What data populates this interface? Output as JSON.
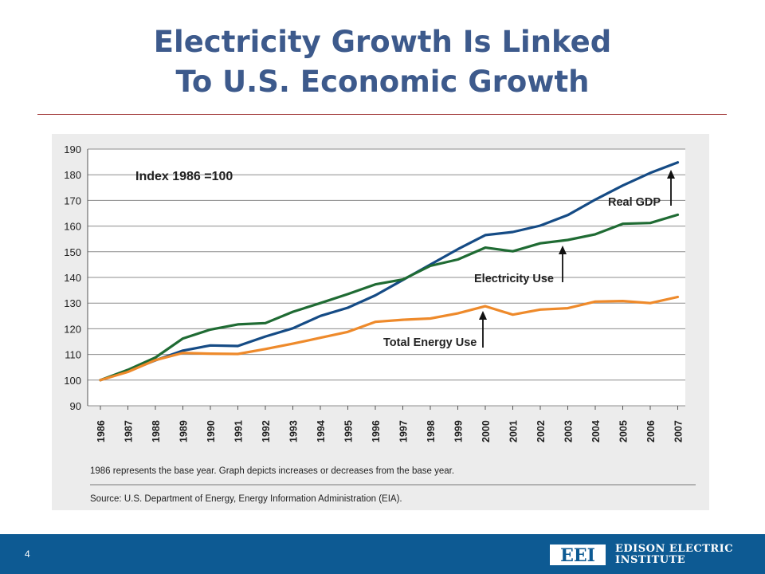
{
  "slide": {
    "title_line1": "Electricity Growth Is Linked",
    "title_line2": "To U.S. Economic Growth",
    "page_number": "4"
  },
  "footer": {
    "logo_text": "EEI",
    "org_line1": "EDISON ELECTRIC",
    "org_line2": "INSTITUTE"
  },
  "colors": {
    "title": "#3d5a8c",
    "footer": "#0d5a93",
    "real_gdp": "#154b85",
    "electricity_use": "#1f6b33",
    "total_energy_use": "#ee8a2b"
  },
  "chart_data": {
    "type": "line",
    "annotation_index": "Index 1986 =100",
    "x": [
      "1986",
      "1987",
      "1988",
      "1989",
      "1990",
      "1991",
      "1992",
      "1993",
      "1994",
      "1995",
      "1996",
      "1997",
      "1998",
      "1999",
      "2000",
      "2001",
      "2002",
      "2003",
      "2004",
      "2005",
      "2006",
      "2007"
    ],
    "ylim": [
      90,
      190
    ],
    "yticks": [
      90,
      100,
      110,
      120,
      130,
      140,
      150,
      160,
      170,
      180,
      190
    ],
    "grid": true,
    "series": [
      {
        "name": "Real GDP",
        "color": "#154b85",
        "values": [
          100,
          103.5,
          107.7,
          111.5,
          113.5,
          113.3,
          117,
          120.2,
          125,
          128.2,
          133,
          139,
          145,
          151,
          156.5,
          157.7,
          160.2,
          164.3,
          170.3,
          175.8,
          180.7,
          184.8
        ]
      },
      {
        "name": "Electricity Use",
        "color": "#1f6b33",
        "values": [
          100,
          104,
          108.8,
          116.2,
          119.7,
          121.7,
          122.2,
          126.6,
          130,
          133.5,
          137.3,
          139.2,
          144.5,
          147,
          151.6,
          150.2,
          153.3,
          154.6,
          156.8,
          160.9,
          161.2,
          164.4
        ]
      },
      {
        "name": "Total Energy Use",
        "color": "#ee8a2b",
        "values": [
          100,
          103.2,
          107.8,
          110.6,
          110.3,
          110.2,
          112.1,
          114.2,
          116.5,
          118.8,
          122.7,
          123.5,
          124,
          126,
          128.8,
          125.5,
          127.5,
          128,
          130.6,
          130.8,
          130,
          132.4
        ]
      }
    ],
    "labels": [
      "Real GDP",
      "Electricity Use",
      "Total Energy Use"
    ],
    "footnote": "1986 represents the base year. Graph depicts increases or decreases from the base year.",
    "source": "Source: U.S. Department of Energy, Energy Information Administration (EIA)."
  }
}
